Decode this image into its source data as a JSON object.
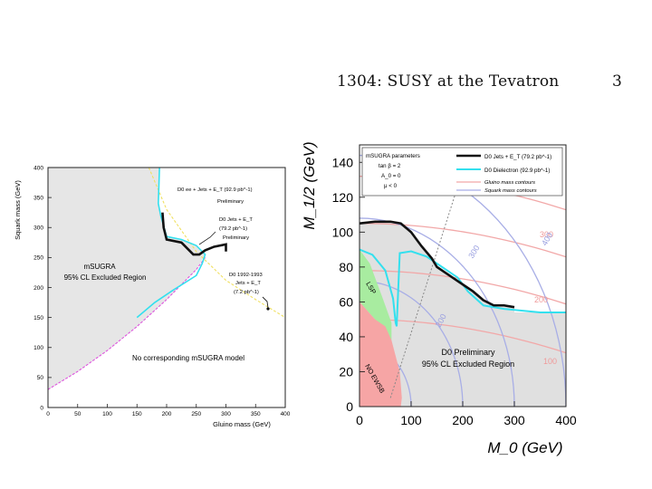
{
  "header": {
    "title": "1304: SUSY at the Tevatron",
    "page_number": "3"
  },
  "colors": {
    "excluded_gray": "#e6e6e6",
    "cyan": "#33e0ee",
    "black": "#111111",
    "yellow": "#f0e060",
    "magenta": "#dd55dd",
    "green_region": "#a8eca0",
    "red_region": "#f6a5a5",
    "gluino_contour": "#f2a8a8",
    "squark_contour": "#a8aee6"
  },
  "chart_data": [
    {
      "type": "line",
      "title": "",
      "xlabel": "Gluino mass (GeV)",
      "ylabel": "Squark mass (GeV)",
      "xlim": [
        0,
        400
      ],
      "ylim": [
        0,
        400
      ],
      "xticks": [
        "0",
        "50",
        "100",
        "150",
        "200",
        "250",
        "300",
        "350",
        "400"
      ],
      "yticks": [
        "0",
        "50",
        "100",
        "150",
        "200",
        "250",
        "300",
        "350",
        "400"
      ],
      "series": [
        {
          "name": "D0 ee + Jets + E_T (92.9 pb^-1) Preliminary",
          "color": "cyan",
          "x": [
            188,
            186,
            190,
            200,
            225,
            250,
            265,
            260,
            250,
            210,
            180,
            150
          ],
          "y": [
            400,
            340,
            320,
            285,
            280,
            270,
            255,
            240,
            220,
            195,
            175,
            150
          ]
        },
        {
          "name": "D0 Jets + E_T (79.2 pb^-1) Preliminary",
          "color": "black",
          "x": [
            193,
            195,
            200,
            225,
            245,
            255,
            265,
            280,
            300,
            300
          ],
          "y": [
            325,
            300,
            280,
            275,
            255,
            255,
            262,
            268,
            272,
            260
          ]
        },
        {
          "name": "D0 1992-1993 Jets + E_T (7.2 pb^-1)",
          "color": "yellow",
          "x": [
            170,
            200,
            250,
            300,
            350,
            400
          ],
          "y": [
            400,
            330,
            260,
            212,
            180,
            150
          ]
        },
        {
          "name": "No corresponding mSUGRA model boundary",
          "color": "magenta",
          "x": [
            0,
            50,
            100,
            150,
            200,
            250,
            265
          ],
          "y": [
            30,
            60,
            95,
            135,
            180,
            230,
            250
          ]
        }
      ],
      "annotations": [
        "D0 ee + Jets + E_T (92.9 pb^-1)",
        "Preliminary",
        "D0 Jets + E_T",
        "(79.2 pb^-1)",
        "Preliminary",
        "mSUGRA",
        "95% CL Excluded Region",
        "D0 1992-1993",
        "Jets + E_T",
        "(7.2 pb^-1)",
        "No corresponding mSUGRA model"
      ]
    },
    {
      "type": "line",
      "title": "",
      "xlabel": "M_0 (GeV)",
      "ylabel": "M_1/2 (GeV)",
      "xlim": [
        0,
        400
      ],
      "ylim": [
        0,
        150
      ],
      "xticks": [
        "0",
        "100",
        "200",
        "300",
        "400"
      ],
      "yticks": [
        "0",
        "20",
        "40",
        "60",
        "80",
        "100",
        "120",
        "140"
      ],
      "legend": {
        "parameters_title": "mSUGRA parameters",
        "parameters": [
          "tan β = 2",
          "A_0 = 0",
          "μ < 0"
        ],
        "entries": [
          "D0 Jets + E_T (79.2 pb^-1)",
          "D0 Dielectron (92.9 pb^-1)",
          "Gluino mass contours",
          "Squark mass contours"
        ]
      },
      "series": [
        {
          "name": "D0 Jets + E_T (79.2 pb^-1)",
          "color": "black",
          "x": [
            0,
            30,
            60,
            80,
            100,
            120,
            140,
            150,
            170,
            190,
            200,
            220,
            240,
            260,
            280,
            300
          ],
          "y": [
            105,
            106,
            106,
            105,
            100,
            92,
            85,
            80,
            76,
            72,
            70,
            66,
            61,
            58,
            58,
            57
          ]
        },
        {
          "name": "D0 Dielectron (92.9 pb^-1)",
          "color": "cyan",
          "x": [
            0,
            25,
            50,
            65,
            70,
            72,
            78,
            100,
            130,
            160,
            190,
            210,
            240,
            280,
            350,
            400
          ],
          "y": [
            90,
            87,
            78,
            62,
            48,
            46,
            88,
            89,
            86,
            80,
            74,
            66,
            58,
            56,
            54,
            54
          ]
        }
      ],
      "gluino_contour_labels": [
        "300",
        "200",
        "100"
      ],
      "squark_contour_labels": [
        "400",
        "300",
        "200",
        "100"
      ],
      "region_labels": [
        "LSP",
        "NO EWSB"
      ],
      "annotations": [
        "D0 Preliminary",
        "95% CL Excluded Region"
      ]
    }
  ]
}
